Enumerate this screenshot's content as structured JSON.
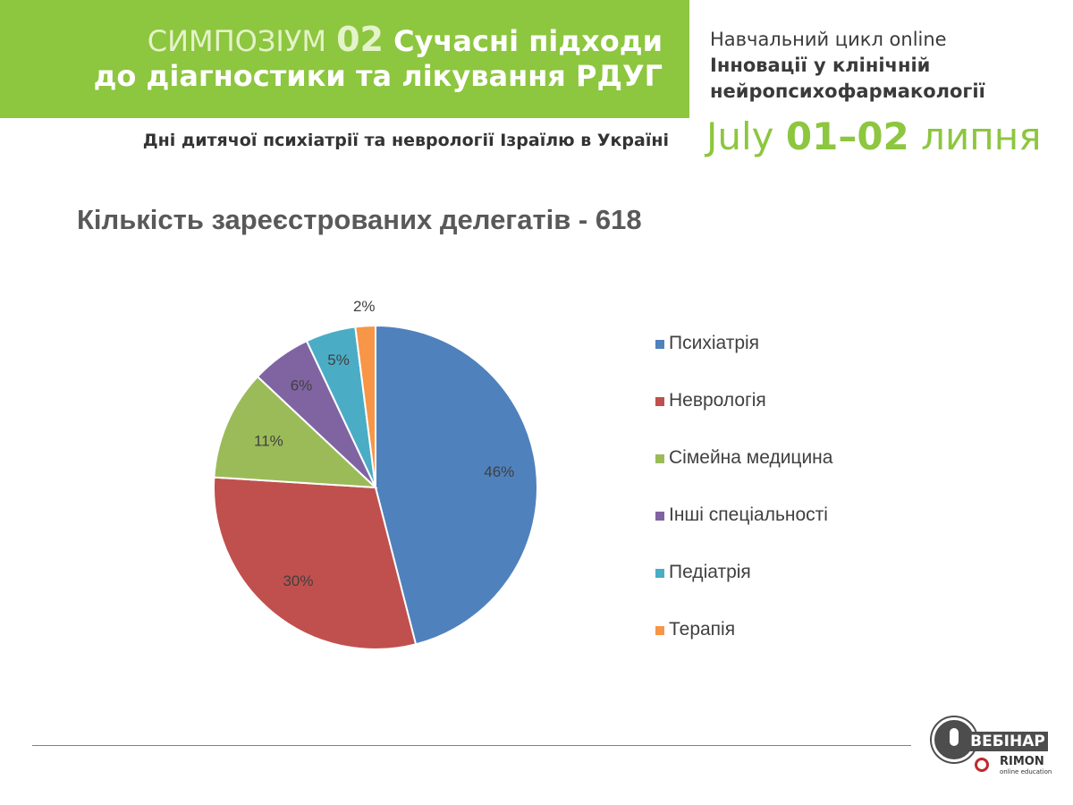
{
  "header": {
    "symposium_word": "СИМПОЗІУМ",
    "symposium_number": "02",
    "title_part1": "Сучасні підходи",
    "title_part2": "до діагностики та лікування РДУГ",
    "subtitle": "Дні дитячої психіатрії та неврології Ізраїлю в Україні",
    "cycle_line1": "Навчальний цикл online",
    "cycle_line2": "Інновації у клінічній",
    "cycle_line3": "нейропсихофармакології",
    "date_month_en": "July",
    "date_days": "01–02",
    "date_month_ua": "липня"
  },
  "logo": {
    "webinar": "ВЕБІНАР",
    "brand": "RIMON",
    "tagline": "online education"
  },
  "colors": {
    "accent_green": "#8dc63f",
    "slices": [
      "#4f81bd",
      "#c0504d",
      "#9bbb59",
      "#8064a2",
      "#4bacc6",
      "#f79646"
    ]
  },
  "chart_data": {
    "type": "pie",
    "title": "Кількість зареєстрованих делегатів - 618",
    "categories": [
      "Психіатрія",
      "Неврологія",
      "Сімейна медицина",
      "Інші спеціальності",
      "Педіатрія",
      "Терапія"
    ],
    "values": [
      46,
      30,
      11,
      6,
      5,
      2
    ],
    "labels": [
      "46%",
      "30%",
      "11%",
      "6%",
      "5%",
      "2%"
    ],
    "unit": "%",
    "legend_position": "right"
  }
}
